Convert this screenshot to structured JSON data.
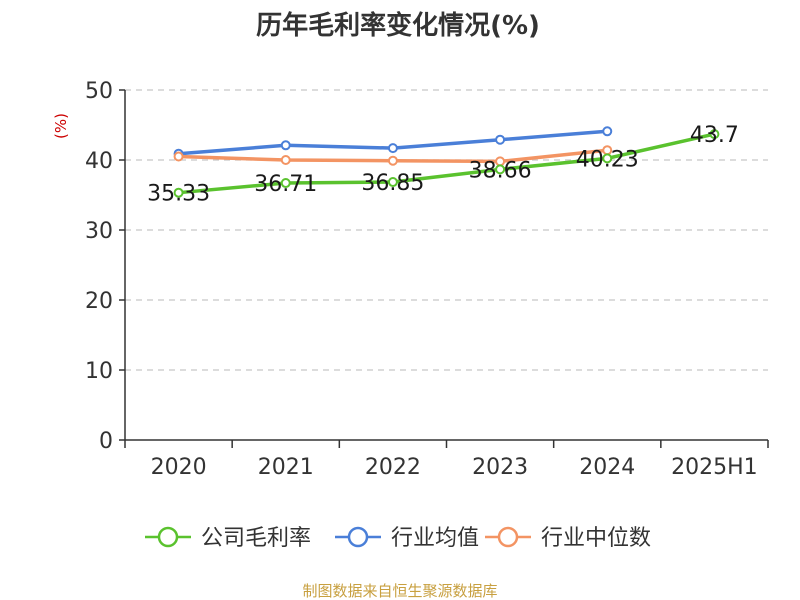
{
  "chart_data": {
    "type": "line",
    "title": "历年毛利率变化情况(%)",
    "ylabel": "(%)",
    "xlabel": "",
    "categories": [
      "2020",
      "2021",
      "2022",
      "2023",
      "2024",
      "2025H1"
    ],
    "ylim": [
      0,
      50
    ],
    "yticks": [
      0,
      10,
      20,
      30,
      40,
      50
    ],
    "grid": true,
    "legend_position": "bottom",
    "series": [
      {
        "name": "公司毛利率",
        "color": "#5ac22e",
        "values": [
          35.33,
          36.71,
          36.85,
          38.66,
          40.23,
          43.7
        ],
        "labels": [
          "35.33",
          "36.71",
          "36.85",
          "38.66",
          "40.23",
          "43.7"
        ]
      },
      {
        "name": "行业均值",
        "color": "#4a7fd8",
        "values": [
          40.9,
          42.1,
          41.7,
          42.9,
          44.1,
          null
        ]
      },
      {
        "name": "行业中位数",
        "color": "#f39463",
        "values": [
          40.5,
          40.0,
          39.9,
          39.8,
          41.4,
          null
        ]
      }
    ]
  },
  "source_text": "制图数据来自恒生聚源数据库"
}
